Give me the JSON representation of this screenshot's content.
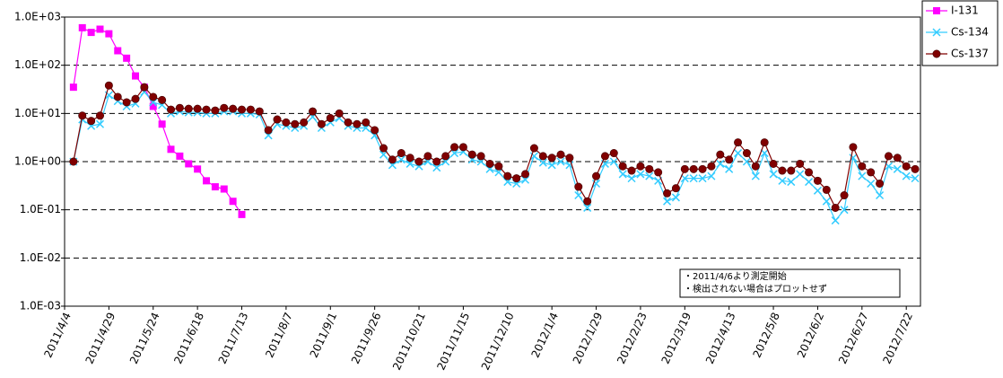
{
  "chart_data": {
    "type": "line",
    "log_y": true,
    "grid": true,
    "legend": "upper right",
    "annotations": [
      "・2011/4/6より測定開始",
      "・検出されない場合はプロットせず"
    ],
    "x": [
      "2011/4/9",
      "2011/4/14",
      "2011/4/19",
      "2011/4/24",
      "2011/4/29",
      "2011/5/4",
      "2011/5/9",
      "2011/5/14",
      "2011/5/19",
      "2011/5/24",
      "2011/5/29",
      "2011/6/3",
      "2011/6/8",
      "2011/6/13",
      "2011/6/18",
      "2011/6/23",
      "2011/6/28",
      "2011/7/3",
      "2011/7/8",
      "2011/7/13",
      "2011/7/18",
      "2011/7/23",
      "2011/7/28",
      "2011/8/2",
      "2011/8/7",
      "2011/8/12",
      "2011/8/17",
      "2011/8/22",
      "2011/8/27",
      "2011/9/1",
      "2011/9/6",
      "2011/9/11",
      "2011/9/16",
      "2011/9/21",
      "2011/9/26",
      "2011/10/1",
      "2011/10/6",
      "2011/10/11",
      "2011/10/16",
      "2011/10/21",
      "2011/10/26",
      "2011/10/31",
      "2011/11/5",
      "2011/11/10",
      "2011/11/15",
      "2011/11/20",
      "2011/11/25",
      "2011/11/30",
      "2011/12/5",
      "2011/12/10",
      "2011/12/15",
      "2011/12/20",
      "2011/12/25",
      "2011/12/30",
      "2012/1/4",
      "2012/1/9",
      "2012/1/14",
      "2012/1/19",
      "2012/1/24",
      "2012/1/29",
      "2012/2/3",
      "2012/2/8",
      "2012/2/13",
      "2012/2/18",
      "2012/2/23",
      "2012/2/28",
      "2012/3/4",
      "2012/3/9",
      "2012/3/14",
      "2012/3/19",
      "2012/3/24",
      "2012/3/29",
      "2012/4/3",
      "2012/4/8",
      "2012/4/13",
      "2012/4/18",
      "2012/4/23",
      "2012/4/28",
      "2012/5/3",
      "2012/5/8",
      "2012/5/13",
      "2012/5/18",
      "2012/5/23",
      "2012/5/28",
      "2012/6/2",
      "2012/6/7",
      "2012/6/12",
      "2012/6/17",
      "2012/6/22",
      "2012/6/27",
      "2012/7/2",
      "2012/7/7",
      "2012/7/12",
      "2012/7/17",
      "2012/7/22",
      "2012/7/27"
    ],
    "xlim": [
      "2011/4/4",
      "2012/7/30"
    ],
    "xticks": [
      "2011/4/4",
      "2011/4/29",
      "2011/5/24",
      "2011/6/18",
      "2011/7/13",
      "2011/8/7",
      "2011/9/1",
      "2011/9/26",
      "2011/10/21",
      "2011/11/15",
      "2011/12/10",
      "2012/1/4",
      "2012/1/29",
      "2012/2/23",
      "2012/3/19",
      "2012/4/13",
      "2012/5/8",
      "2012/6/2",
      "2012/6/27",
      "2012/7/22"
    ],
    "ylim": [
      0.001,
      1000
    ],
    "yticks": [
      {
        "value": 0.001,
        "label": "1.0E-03"
      },
      {
        "value": 0.01,
        "label": "1.0E-02"
      },
      {
        "value": 0.1,
        "label": "1.0E-01"
      },
      {
        "value": 1,
        "label": "1.0E+00"
      },
      {
        "value": 10,
        "label": "1.0E+01"
      },
      {
        "value": 100,
        "label": "1.0E+02"
      },
      {
        "value": 1000,
        "label": "1.0E+03"
      }
    ],
    "series": [
      {
        "name": "I-131",
        "color": "#ff00ff",
        "marker": "square",
        "values": [
          35,
          600,
          480,
          560,
          450,
          200,
          140,
          60,
          35,
          14,
          6,
          1.8,
          1.3,
          0.9,
          0.7,
          0.4,
          0.3,
          0.27,
          0.15,
          0.08,
          null,
          null,
          null,
          null,
          null,
          null,
          null,
          null,
          null,
          null,
          null,
          null,
          null,
          null,
          null,
          null,
          null,
          null,
          null,
          null,
          null,
          null,
          null,
          null,
          null,
          null,
          null,
          null,
          null,
          null,
          null,
          null,
          null,
          null,
          null,
          null,
          null,
          null,
          null,
          null,
          null,
          null,
          null,
          null,
          null,
          null,
          null,
          null,
          null,
          null,
          null,
          null,
          null,
          null,
          null,
          null,
          null,
          null,
          null,
          null,
          null,
          null,
          null,
          null,
          null,
          null,
          null,
          null,
          null,
          null,
          null,
          null,
          null,
          null,
          null,
          null
        ]
      },
      {
        "name": "Cs-134",
        "color": "#33ccff",
        "marker": "x",
        "values": [
          1.0,
          7.5,
          5.5,
          6,
          24,
          18,
          14,
          16,
          28,
          17,
          15,
          10,
          11,
          10.5,
          10.5,
          10,
          10,
          11,
          11,
          10,
          10,
          9.5,
          3.5,
          6,
          5.5,
          5,
          5.5,
          8.5,
          5,
          6.5,
          8,
          5.5,
          5,
          5,
          3.5,
          1.4,
          0.85,
          1.1,
          0.9,
          0.8,
          1.0,
          0.75,
          1.0,
          1.5,
          1.6,
          1.1,
          1.0,
          0.7,
          0.6,
          0.38,
          0.35,
          0.42,
          1.3,
          0.95,
          0.85,
          1.0,
          0.85,
          0.2,
          0.11,
          0.35,
          0.9,
          1.0,
          0.55,
          0.45,
          0.55,
          0.5,
          0.4,
          0.15,
          0.18,
          0.45,
          0.45,
          0.45,
          0.5,
          0.9,
          0.7,
          1.5,
          1.0,
          0.5,
          1.5,
          0.55,
          0.4,
          0.38,
          0.55,
          0.38,
          0.25,
          0.15,
          0.06,
          0.1,
          1.2,
          0.5,
          0.35,
          0.2,
          0.8,
          0.7,
          0.5,
          0.45
        ]
      },
      {
        "name": "Cs-137",
        "color": "#800000",
        "marker": "circle",
        "values": [
          1.0,
          9,
          7,
          9,
          38,
          22,
          17,
          20,
          35,
          22,
          19,
          12,
          13,
          12.5,
          12.5,
          12,
          11.5,
          13,
          12.5,
          12,
          12,
          11,
          4.5,
          7.5,
          6.5,
          6,
          6.5,
          11,
          6,
          8,
          10,
          6.5,
          6,
          6.5,
          4.5,
          1.9,
          1.1,
          1.5,
          1.2,
          1.0,
          1.3,
          1.0,
          1.3,
          2.0,
          2.0,
          1.4,
          1.3,
          0.9,
          0.8,
          0.5,
          0.45,
          0.55,
          1.9,
          1.3,
          1.2,
          1.4,
          1.2,
          0.3,
          0.15,
          0.5,
          1.3,
          1.5,
          0.8,
          0.65,
          0.8,
          0.7,
          0.6,
          0.22,
          0.28,
          0.7,
          0.7,
          0.7,
          0.8,
          1.4,
          1.1,
          2.5,
          1.5,
          0.8,
          2.5,
          0.9,
          0.65,
          0.65,
          0.9,
          0.6,
          0.4,
          0.26,
          0.11,
          0.2,
          2.0,
          0.8,
          0.6,
          0.35,
          1.3,
          1.2,
          0.8,
          0.7
        ]
      }
    ]
  }
}
